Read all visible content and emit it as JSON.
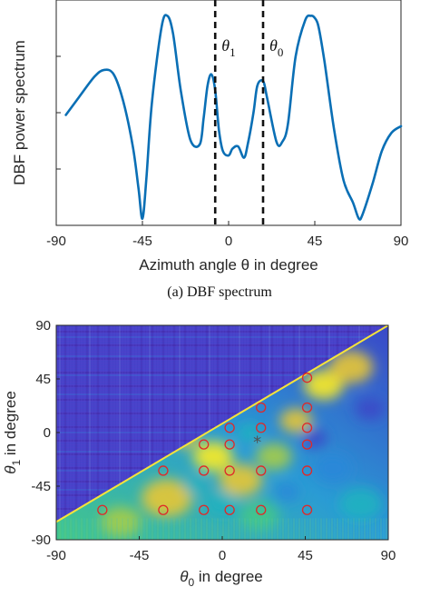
{
  "chart_data": [
    {
      "type": "line",
      "caption": "(a) DBF spectrum",
      "xlabel": "Azimuth angle θ in degree",
      "ylabel": "DBF power spectrum",
      "xlim": [
        -90,
        90
      ],
      "xticks": [
        -90,
        -45,
        0,
        45,
        90
      ],
      "ylim": [
        0,
        1
      ],
      "grid": false,
      "line_color": "#0a6fb5",
      "series": [
        {
          "x": [
            -85,
            -78,
            -70,
            -65,
            -60,
            -55,
            -50,
            -47,
            -45,
            -43,
            -40,
            -35,
            -32,
            -29,
            -25,
            -20,
            -15,
            -13,
            -11,
            -9,
            -7,
            -5,
            -3,
            0,
            2,
            5,
            8,
            10,
            13,
            15,
            18,
            20,
            25,
            28,
            31,
            35,
            40,
            43,
            45,
            47,
            50,
            55,
            60,
            65,
            68,
            70,
            75,
            80,
            85,
            90
          ],
          "y": [
            0.49,
            0.57,
            0.66,
            0.69,
            0.67,
            0.55,
            0.35,
            0.16,
            0.03,
            0.2,
            0.55,
            0.88,
            0.93,
            0.85,
            0.6,
            0.38,
            0.36,
            0.48,
            0.62,
            0.67,
            0.6,
            0.42,
            0.33,
            0.31,
            0.34,
            0.35,
            0.3,
            0.36,
            0.5,
            0.62,
            0.64,
            0.57,
            0.37,
            0.37,
            0.45,
            0.75,
            0.91,
            0.93,
            0.92,
            0.88,
            0.73,
            0.43,
            0.2,
            0.1,
            0.03,
            0.05,
            0.18,
            0.33,
            0.41,
            0.44
          ]
        }
      ],
      "annotations": [
        {
          "label": "θ1",
          "x": -7
        },
        {
          "label": "θ0",
          "x": 18
        }
      ]
    },
    {
      "type": "heatmap",
      "xlabel": "θ0 in degree",
      "ylabel": "θ1 in degree",
      "xlim": [
        -90,
        90
      ],
      "ylim": [
        -90,
        90
      ],
      "xticks": [
        -90,
        -45,
        0,
        45,
        90
      ],
      "yticks": [
        90,
        45,
        0,
        -45,
        -90
      ],
      "colormap": [
        "#3f1f94",
        "#3a48c8",
        "#2a87d9",
        "#1fb3c0",
        "#43c78a",
        "#a6cc48",
        "#e8c635",
        "#fbeb25"
      ],
      "candidate_points_color": "#e02828",
      "candidate_points": [
        [
          -65,
          -65
        ],
        [
          -32,
          -32
        ],
        [
          -32,
          -65
        ],
        [
          -10,
          -10
        ],
        [
          -10,
          -32
        ],
        [
          -10,
          -65
        ],
        [
          4,
          4
        ],
        [
          4,
          -10
        ],
        [
          4,
          -32
        ],
        [
          4,
          -65
        ],
        [
          21,
          21
        ],
        [
          21,
          4
        ],
        [
          21,
          -32
        ],
        [
          21,
          -65
        ],
        [
          46,
          46
        ],
        [
          46,
          21
        ],
        [
          46,
          4
        ],
        [
          46,
          -10
        ],
        [
          46,
          -32
        ],
        [
          46,
          -65
        ]
      ],
      "estimate_point": {
        "x": 19,
        "y": -8,
        "marker": "*",
        "color": "#505050"
      }
    }
  ]
}
